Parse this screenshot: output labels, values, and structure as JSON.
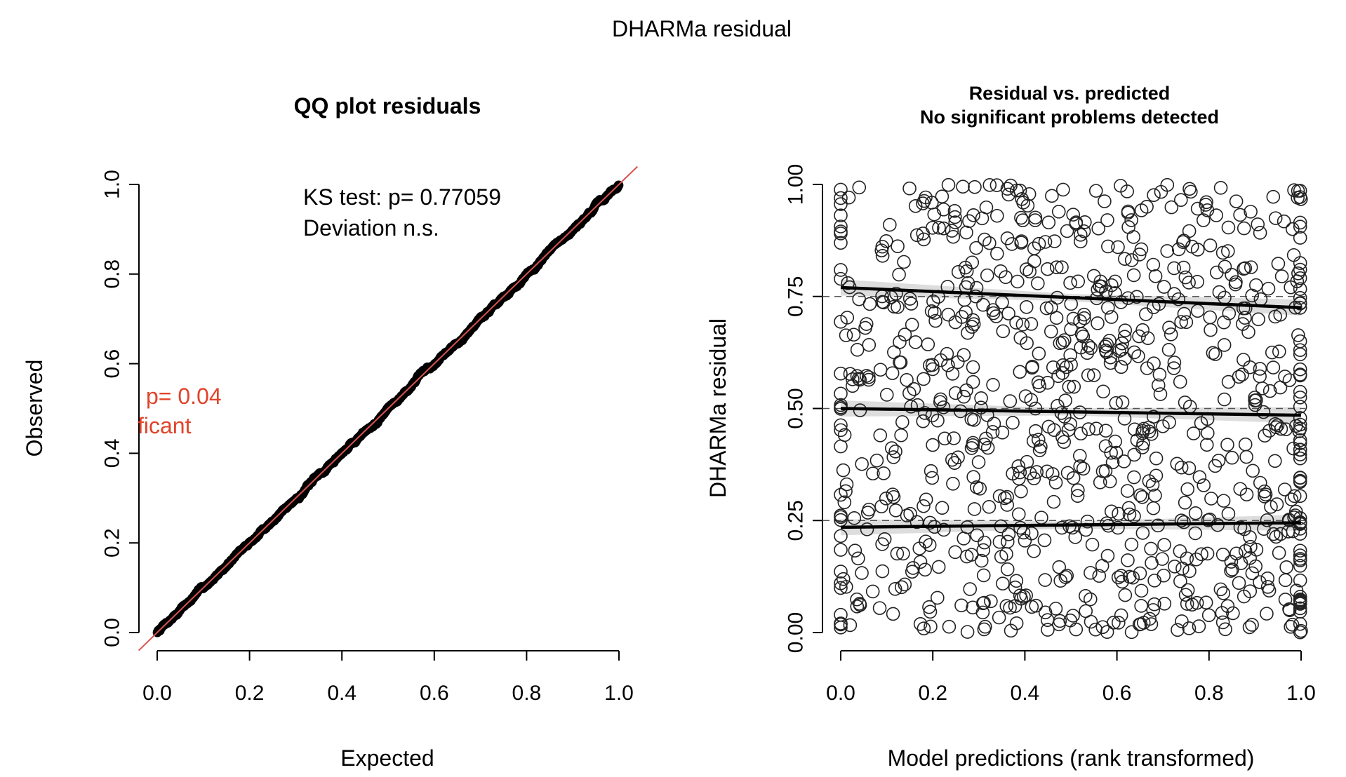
{
  "figure": {
    "supertitle": "DHARMa residual"
  },
  "chart_data": [
    {
      "type": "scatter",
      "subtype": "qq",
      "title": "QQ plot residuals",
      "xlabel": "Expected",
      "ylabel": "Observed",
      "xlim": [
        0,
        1
      ],
      "ylim": [
        0,
        1
      ],
      "x_ticks": [
        "0.0",
        "0.2",
        "0.4",
        "0.6",
        "0.8",
        "1.0"
      ],
      "y_ticks": [
        "0.0",
        "0.2",
        "0.4",
        "0.6",
        "0.8",
        "1.0"
      ],
      "reference_line": {
        "slope": 1,
        "intercept": 0,
        "color": "#d9534f"
      },
      "series_color": "#000000",
      "annotations": {
        "ks_test": "KS test: p= 0.77059",
        "ks_result": "Deviation  n.s.",
        "clipped_test_p": "p= 0.04",
        "clipped_test_result": "ficant",
        "clipped_color": "#e0442a"
      }
    },
    {
      "type": "scatter",
      "title_line1": "Residual vs. predicted",
      "title_line2": "No significant problems detected",
      "xlabel": "Model predictions (rank transformed)",
      "ylabel": "DHARMa residual",
      "xlim": [
        0,
        1
      ],
      "ylim": [
        0,
        1
      ],
      "x_ticks": [
        "0.0",
        "0.2",
        "0.4",
        "0.6",
        "0.8",
        "1.0"
      ],
      "y_ticks": [
        "0.00",
        "0.25",
        "0.50",
        "0.75",
        "1.00"
      ],
      "reference_lines": [
        0.25,
        0.5,
        0.75
      ],
      "quantile_lines": [
        {
          "quantile": 0.25,
          "start": 0.235,
          "end": 0.245
        },
        {
          "quantile": 0.5,
          "start": 0.5,
          "end": 0.485
        },
        {
          "quantile": 0.75,
          "start": 0.77,
          "end": 0.725
        }
      ],
      "points_note": "about 950 open circles, uniformly scattered over [0,1] x [0,1]"
    }
  ]
}
